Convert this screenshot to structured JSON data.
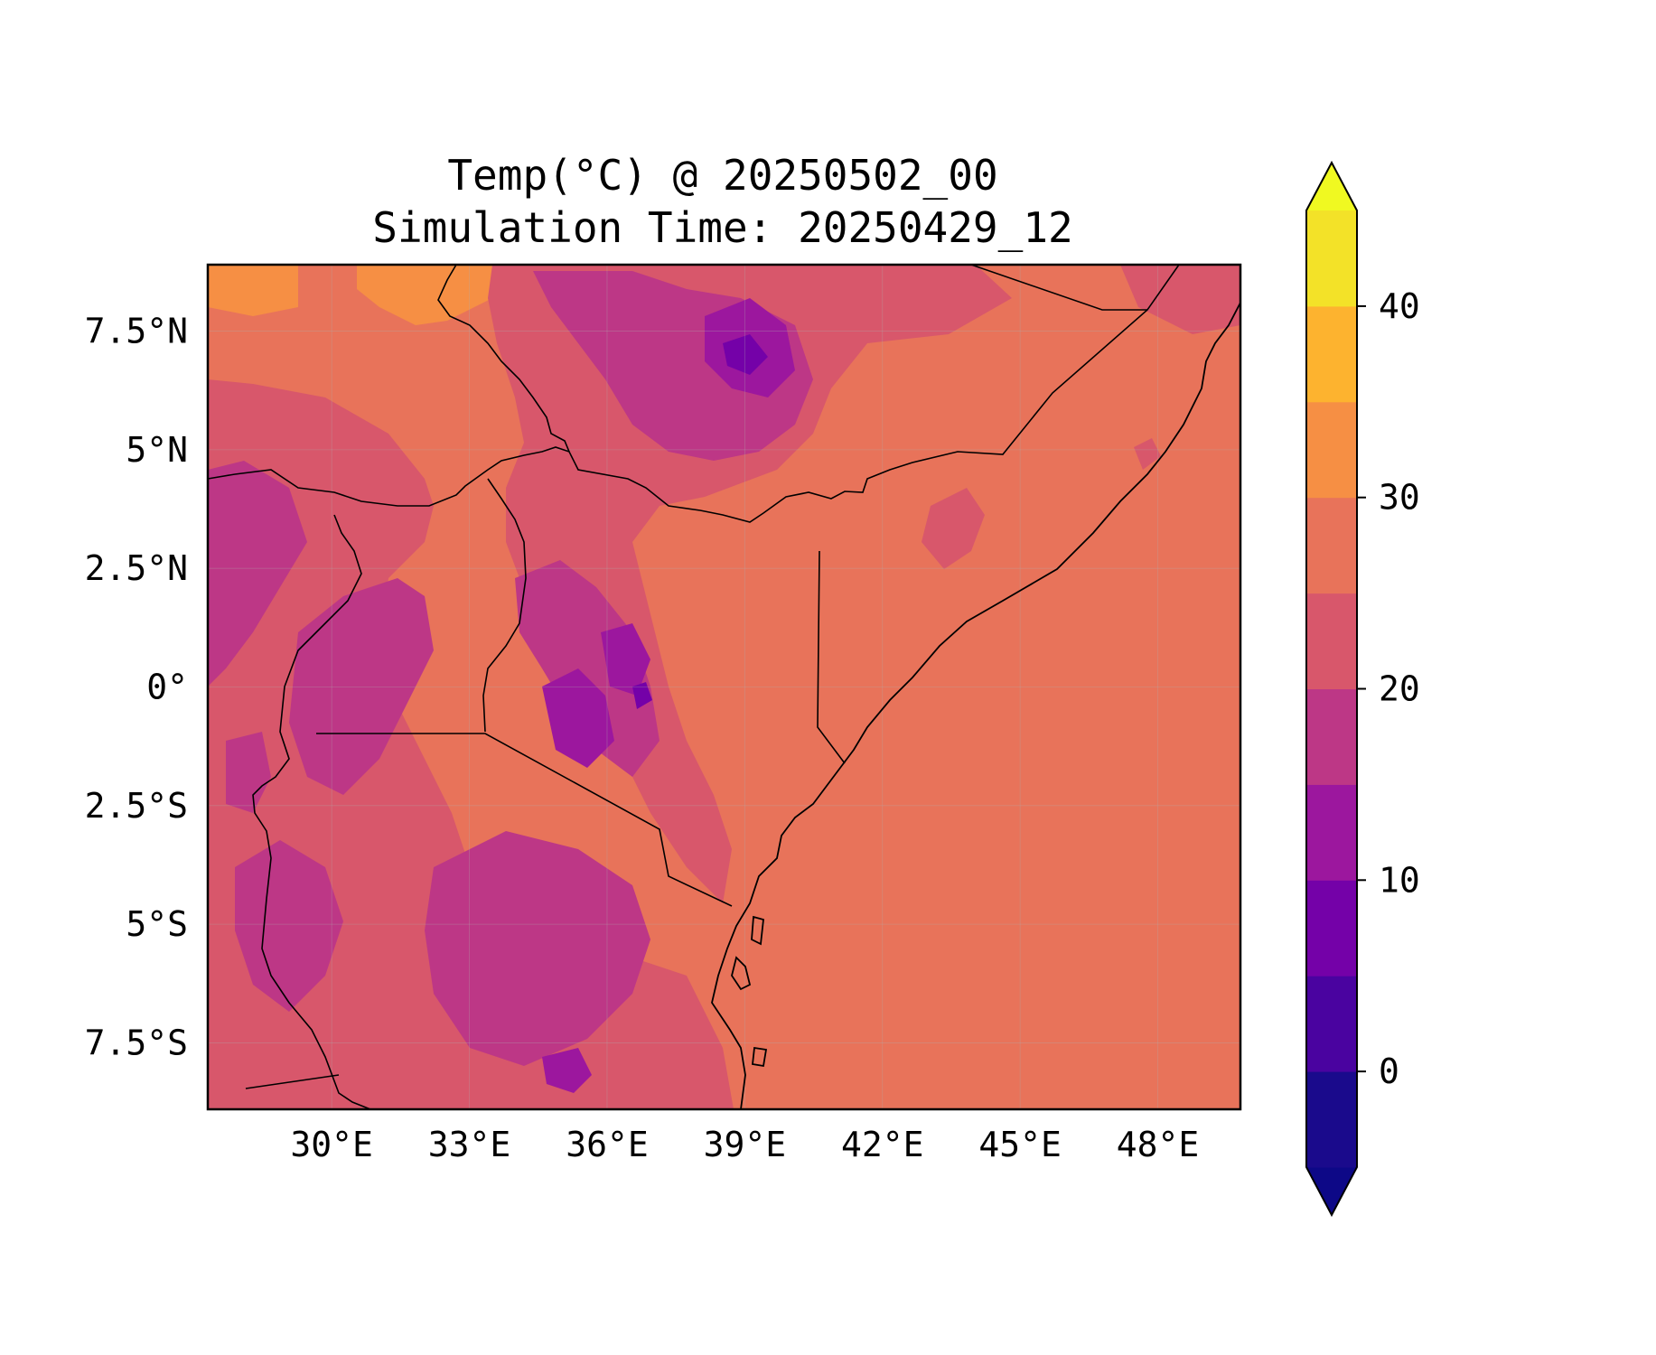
{
  "title": {
    "line1": "Temp(°C) @ 20250502_00",
    "line2": "Simulation Time: 20250429_12"
  },
  "map": {
    "lon_range": [
      27.3,
      49.8
    ],
    "lat_range": [
      -8.9,
      8.9
    ],
    "x_ticks": [
      {
        "value": 30,
        "label": "30°E"
      },
      {
        "value": 33,
        "label": "33°E"
      },
      {
        "value": 36,
        "label": "36°E"
      },
      {
        "value": 39,
        "label": "39°E"
      },
      {
        "value": 42,
        "label": "42°E"
      },
      {
        "value": 45,
        "label": "45°E"
      },
      {
        "value": 48,
        "label": "48°E"
      }
    ],
    "y_ticks": [
      {
        "value": 7.5,
        "label": "7.5°N"
      },
      {
        "value": 5,
        "label": "5°N"
      },
      {
        "value": 2.5,
        "label": "2.5°N"
      },
      {
        "value": 0,
        "label": "0°"
      },
      {
        "value": -2.5,
        "label": "2.5°S"
      },
      {
        "value": -5,
        "label": "5°S"
      },
      {
        "value": -7.5,
        "label": "7.5°S"
      }
    ],
    "gridlines": true,
    "base_color": "#e8735a"
  },
  "colorbar": {
    "levels": [
      -5,
      0,
      5,
      10,
      15,
      20,
      25,
      30,
      35,
      40,
      45
    ],
    "colors": [
      "#1a0a8c",
      "#4a03a0",
      "#7401a8",
      "#9c179e",
      "#bd3786",
      "#d8576b",
      "#e8735a",
      "#f68f44",
      "#fdb32f",
      "#f3e228"
    ],
    "under_color": "#0d0887",
    "over_color": "#f0f921",
    "extend": "both",
    "ticks": [
      {
        "value": 0,
        "label": "0"
      },
      {
        "value": 10,
        "label": "10"
      },
      {
        "value": 20,
        "label": "20"
      },
      {
        "value": 30,
        "label": "30"
      },
      {
        "value": 40,
        "label": "40"
      }
    ]
  }
}
